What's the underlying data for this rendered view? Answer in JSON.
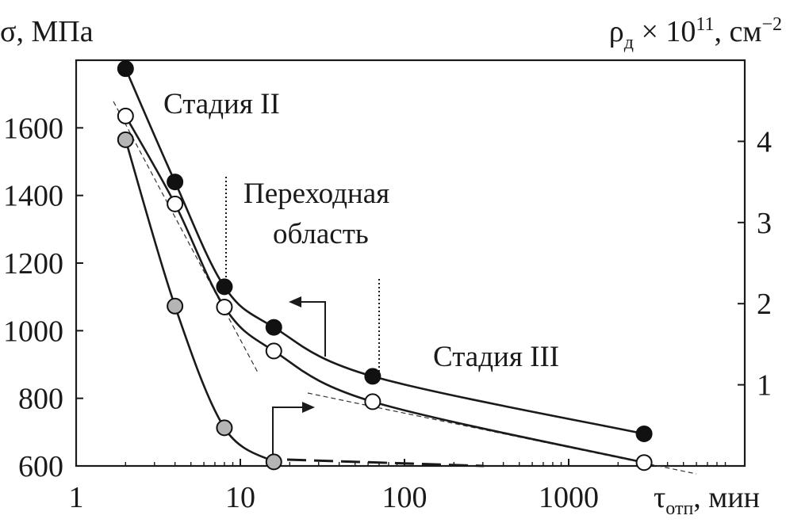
{
  "chart_data": {
    "type": "line",
    "x_scale": "log",
    "xlim": [
      1,
      5000
    ],
    "ylim_left": [
      600,
      1800
    ],
    "ylim_right": [
      0,
      5
    ],
    "left_axis_label": "σ, МПа",
    "right_axis_label": {
      "base": "ρ",
      "sub": "д",
      "mid": " × 10",
      "sup": "11",
      "tail": ", см",
      "sup2": "−2"
    },
    "x_axis_label": {
      "base": "τ",
      "sub": "отп",
      "tail": ", мин"
    },
    "x_ticks": [
      {
        "value": 1,
        "label": "1"
      },
      {
        "value": 10,
        "label": "10"
      },
      {
        "value": 100,
        "label": "100"
      },
      {
        "value": 1000,
        "label": "1000"
      }
    ],
    "y_ticks_left": [
      {
        "value": 600,
        "label": "600"
      },
      {
        "value": 800,
        "label": "800"
      },
      {
        "value": 1000,
        "label": "1000"
      },
      {
        "value": 1200,
        "label": "1200"
      },
      {
        "value": 1400,
        "label": "1400"
      },
      {
        "value": 1600,
        "label": "1600"
      }
    ],
    "y_ticks_right": [
      {
        "value": 1,
        "label": "1"
      },
      {
        "value": 2,
        "label": "2"
      },
      {
        "value": 3,
        "label": "3"
      },
      {
        "value": 4,
        "label": "4"
      }
    ],
    "series": [
      {
        "marker": "filled-black",
        "axis": "left",
        "points": [
          [
            2,
            1775
          ],
          [
            4,
            1440
          ],
          [
            8,
            1130
          ],
          [
            16,
            1010
          ],
          [
            64,
            865
          ],
          [
            2880,
            695
          ]
        ]
      },
      {
        "marker": "open-white",
        "axis": "left",
        "points": [
          [
            2,
            1635
          ],
          [
            4,
            1375
          ],
          [
            8,
            1070
          ],
          [
            16,
            940
          ],
          [
            64,
            790
          ],
          [
            2880,
            610
          ]
        ]
      },
      {
        "marker": "filled-gray",
        "axis": "right",
        "points": [
          [
            2,
            4.02
          ],
          [
            4,
            1.97
          ],
          [
            8,
            0.47
          ],
          [
            16,
            0.05
          ]
        ]
      }
    ],
    "annotations": {
      "stage2": "Стадия II",
      "transition_line1": "Переходная",
      "transition_line2": "область",
      "stage3": "Стадия III"
    },
    "grid": false,
    "legend": "none"
  }
}
